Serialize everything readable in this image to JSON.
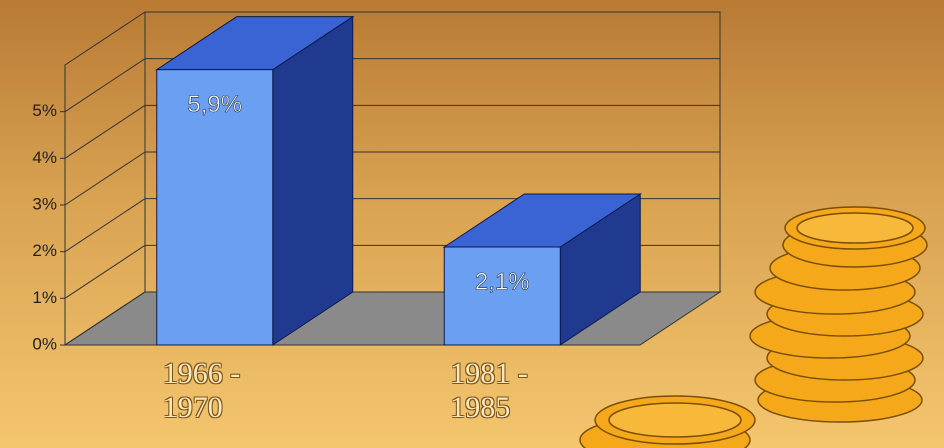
{
  "chart_data": {
    "type": "bar3d",
    "categories": [
      "1966 - 1970",
      "1981 - 1985"
    ],
    "values": [
      5.9,
      2.1
    ],
    "value_labels": [
      "5,9%",
      "2,1%"
    ],
    "color": "#6b9ff2",
    "ylim": [
      0,
      6
    ],
    "yticks": [
      {
        "value": 0,
        "label": "0%"
      },
      {
        "value": 1,
        "label": "1%"
      },
      {
        "value": 2,
        "label": "2%"
      },
      {
        "value": 3,
        "label": "3%"
      },
      {
        "value": 4,
        "label": "4%"
      },
      {
        "value": 5,
        "label": "5%"
      }
    ],
    "grid": true
  }
}
